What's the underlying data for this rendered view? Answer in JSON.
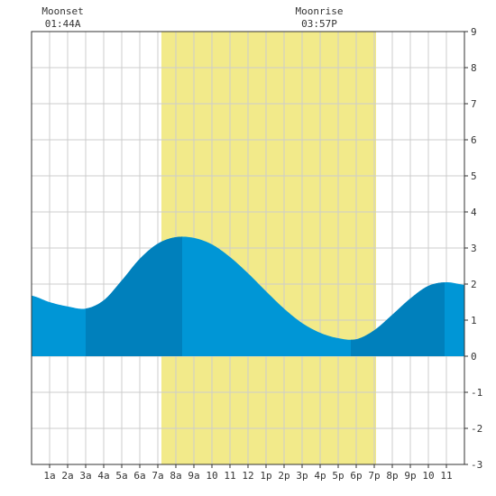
{
  "chart_data": {
    "type": "area",
    "title": "",
    "xlabel": "",
    "ylabel": "",
    "x_unit": "hour of day",
    "xlim": [
      0,
      24
    ],
    "ylim": [
      -3,
      9
    ],
    "y_ticks": [
      -3,
      -2,
      -1,
      0,
      1,
      2,
      3,
      4,
      5,
      6,
      7,
      8,
      9
    ],
    "y_tick_labels": [
      "-3",
      "-2",
      "-1",
      "0",
      "1",
      "2",
      "3",
      "4",
      "5",
      "6",
      "7",
      "8",
      "9"
    ],
    "x_ticks": [
      1,
      2,
      3,
      4,
      5,
      6,
      7,
      8,
      9,
      10,
      11,
      12,
      13,
      14,
      15,
      16,
      17,
      18,
      19,
      20,
      21,
      22,
      23
    ],
    "x_tick_labels": [
      "1a",
      "2a",
      "3a",
      "4a",
      "5a",
      "6a",
      "7a",
      "8a",
      "9a",
      "10",
      "11",
      "12",
      "1p",
      "2p",
      "3p",
      "4p",
      "5p",
      "6p",
      "7p",
      "8p",
      "9p",
      "10",
      "11"
    ],
    "grid": true,
    "daylight": {
      "start": 7.2,
      "end": 19.1,
      "color": "#f2ea8a"
    },
    "moon_events": [
      {
        "label": "Moonset",
        "time": "01:44A",
        "hour": 1.73
      },
      {
        "label": "Moonrise",
        "time": "03:57P",
        "hour": 15.95
      }
    ],
    "colors": {
      "tide_fill": "#0096d6",
      "tide_fill_dark": "#0080bc",
      "grid": "#cccccc",
      "daylight": "#f2ea8a"
    },
    "extrema": [
      {
        "hour": 3.0,
        "height": 1.32,
        "type": "low"
      },
      {
        "hour": 8.35,
        "height": 3.3,
        "type": "high"
      },
      {
        "hour": 17.7,
        "height": 0.45,
        "type": "low"
      },
      {
        "hour": 22.9,
        "height": 2.05,
        "type": "high"
      }
    ],
    "series": [
      {
        "x": [
          0,
          1,
          2,
          3,
          4,
          5,
          6,
          7,
          8,
          9,
          10,
          11,
          12,
          13,
          14,
          15,
          16,
          17,
          18,
          19,
          20,
          21,
          22,
          23,
          24
        ],
        "values": [
          1.68,
          1.5,
          1.38,
          1.32,
          1.55,
          2.1,
          2.7,
          3.12,
          3.3,
          3.28,
          3.1,
          2.75,
          2.3,
          1.8,
          1.32,
          0.92,
          0.65,
          0.5,
          0.47,
          0.72,
          1.15,
          1.6,
          1.95,
          2.05,
          1.98
        ]
      }
    ],
    "dark_bands": [
      [
        3.0,
        8.35
      ],
      [
        17.7,
        22.9
      ]
    ]
  }
}
